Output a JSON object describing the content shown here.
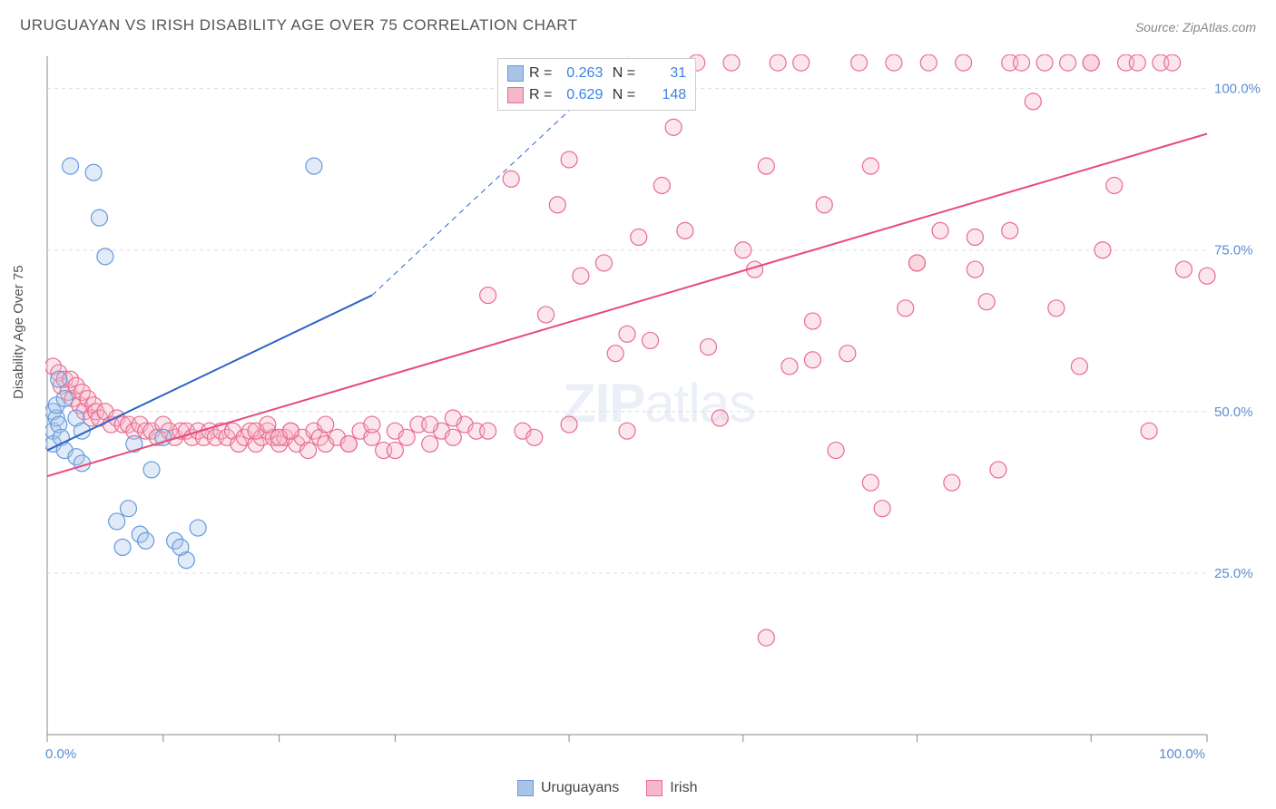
{
  "title": "URUGUAYAN VS IRISH DISABILITY AGE OVER 75 CORRELATION CHART",
  "source": "Source: ZipAtlas.com",
  "watermark": {
    "bold": "ZIP",
    "light": "atlas"
  },
  "y_axis_label": "Disability Age Over 75",
  "chart": {
    "type": "scatter",
    "background_color": "#ffffff",
    "plot_border_color": "#888888",
    "grid_color": "#dddddd",
    "grid_dash": "4,4",
    "xlim": [
      0,
      100
    ],
    "ylim": [
      0,
      105
    ],
    "x_ticks": [
      0,
      10,
      20,
      30,
      45,
      60,
      75,
      90,
      100
    ],
    "x_tick_labels": {
      "0": "0.0%",
      "100": "100.0%"
    },
    "y_ticks": [
      25,
      50,
      75,
      100
    ],
    "y_tick_labels": {
      "25": "25.0%",
      "50": "50.0%",
      "75": "75.0%",
      "100": "100.0%"
    },
    "tick_label_color": "#5b8dd6",
    "tick_label_fontsize": 15,
    "marker_radius": 9,
    "marker_stroke_width": 1.2,
    "marker_fill_opacity": 0.35,
    "series": [
      {
        "name": "Uruguayans",
        "color_stroke": "#6699dd",
        "color_fill": "#a8c5e8",
        "R": "0.263",
        "N": "31",
        "trend": {
          "x1": 0,
          "y1": 44,
          "x2": 28,
          "y2": 68,
          "dash_extend_x2": 50,
          "dash_extend_y2": 105,
          "color": "#2e64c8",
          "width": 2
        },
        "points": [
          [
            0.5,
            50
          ],
          [
            0.5,
            47
          ],
          [
            0.5,
            45
          ],
          [
            0.8,
            49
          ],
          [
            0.8,
            51
          ],
          [
            1,
            48
          ],
          [
            1,
            55
          ],
          [
            1.2,
            46
          ],
          [
            1.5,
            52
          ],
          [
            1.5,
            44
          ],
          [
            2,
            88
          ],
          [
            2.5,
            49
          ],
          [
            2.5,
            43
          ],
          [
            3,
            47
          ],
          [
            3,
            42
          ],
          [
            4,
            87
          ],
          [
            4.5,
            80
          ],
          [
            5,
            74
          ],
          [
            6,
            33
          ],
          [
            6.5,
            29
          ],
          [
            7,
            35
          ],
          [
            7.5,
            45
          ],
          [
            8,
            31
          ],
          [
            8.5,
            30
          ],
          [
            9,
            41
          ],
          [
            10,
            46
          ],
          [
            11,
            30
          ],
          [
            11.5,
            29
          ],
          [
            12,
            27
          ],
          [
            13,
            32
          ],
          [
            23,
            88
          ]
        ]
      },
      {
        "name": "Irish",
        "color_stroke": "#e86b8f",
        "color_fill": "#f5b8cb",
        "R": "0.629",
        "N": "148",
        "trend": {
          "x1": 0,
          "y1": 40,
          "x2": 100,
          "y2": 93,
          "color": "#e84a7a",
          "width": 2
        },
        "points": [
          [
            0.5,
            57
          ],
          [
            1,
            56
          ],
          [
            1.2,
            54
          ],
          [
            1.5,
            55
          ],
          [
            1.8,
            53
          ],
          [
            2,
            55
          ],
          [
            2.2,
            52
          ],
          [
            2.5,
            54
          ],
          [
            2.8,
            51
          ],
          [
            3,
            53
          ],
          [
            3.2,
            50
          ],
          [
            3.5,
            52
          ],
          [
            3.8,
            49
          ],
          [
            4,
            51
          ],
          [
            4.2,
            50
          ],
          [
            4.5,
            49
          ],
          [
            5,
            50
          ],
          [
            5.5,
            48
          ],
          [
            6,
            49
          ],
          [
            6.5,
            48
          ],
          [
            7,
            48
          ],
          [
            7.5,
            47
          ],
          [
            8,
            48
          ],
          [
            8.5,
            47
          ],
          [
            9,
            47
          ],
          [
            9.5,
            46
          ],
          [
            10,
            48
          ],
          [
            10.5,
            47
          ],
          [
            11,
            46
          ],
          [
            11.5,
            47
          ],
          [
            12,
            47
          ],
          [
            12.5,
            46
          ],
          [
            13,
            47
          ],
          [
            13.5,
            46
          ],
          [
            14,
            47
          ],
          [
            14.5,
            46
          ],
          [
            15,
            47
          ],
          [
            15.5,
            46
          ],
          [
            16,
            47
          ],
          [
            16.5,
            45
          ],
          [
            17,
            46
          ],
          [
            17.5,
            47
          ],
          [
            18,
            45
          ],
          [
            18.5,
            46
          ],
          [
            19,
            47
          ],
          [
            19.5,
            46
          ],
          [
            20,
            45
          ],
          [
            20.5,
            46
          ],
          [
            21,
            47
          ],
          [
            21.5,
            45
          ],
          [
            22,
            46
          ],
          [
            22.5,
            44
          ],
          [
            23,
            47
          ],
          [
            23.5,
            46
          ],
          [
            24,
            45
          ],
          [
            25,
            46
          ],
          [
            26,
            45
          ],
          [
            27,
            47
          ],
          [
            28,
            46
          ],
          [
            29,
            44
          ],
          [
            30,
            47
          ],
          [
            31,
            46
          ],
          [
            32,
            48
          ],
          [
            33,
            45
          ],
          [
            34,
            47
          ],
          [
            35,
            46
          ],
          [
            36,
            48
          ],
          [
            37,
            47
          ],
          [
            38,
            68
          ],
          [
            40,
            86
          ],
          [
            41,
            47
          ],
          [
            42,
            46
          ],
          [
            43,
            65
          ],
          [
            44,
            82
          ],
          [
            45,
            89
          ],
          [
            46,
            71
          ],
          [
            48,
            73
          ],
          [
            49,
            59
          ],
          [
            50,
            47
          ],
          [
            51,
            77
          ],
          [
            52,
            61
          ],
          [
            53,
            85
          ],
          [
            54,
            94
          ],
          [
            55,
            78
          ],
          [
            56,
            104
          ],
          [
            57,
            60
          ],
          [
            58,
            49
          ],
          [
            59,
            104
          ],
          [
            60,
            75
          ],
          [
            61,
            72
          ],
          [
            62,
            88
          ],
          [
            63,
            104
          ],
          [
            64,
            57
          ],
          [
            65,
            104
          ],
          [
            66,
            64
          ],
          [
            67,
            82
          ],
          [
            68,
            44
          ],
          [
            69,
            59
          ],
          [
            70,
            104
          ],
          [
            71,
            88
          ],
          [
            72,
            35
          ],
          [
            73,
            104
          ],
          [
            74,
            66
          ],
          [
            75,
            73
          ],
          [
            76,
            104
          ],
          [
            77,
            78
          ],
          [
            78,
            39
          ],
          [
            79,
            104
          ],
          [
            80,
            72
          ],
          [
            81,
            67
          ],
          [
            82,
            41
          ],
          [
            83,
            104
          ],
          [
            84,
            104
          ],
          [
            85,
            98
          ],
          [
            86,
            104
          ],
          [
            87,
            66
          ],
          [
            88,
            104
          ],
          [
            89,
            57
          ],
          [
            90,
            104
          ],
          [
            91,
            75
          ],
          [
            92,
            85
          ],
          [
            93,
            104
          ],
          [
            94,
            104
          ],
          [
            95,
            47
          ],
          [
            96,
            104
          ],
          [
            97,
            104
          ],
          [
            98,
            72
          ],
          [
            100,
            71
          ],
          [
            62,
            15
          ],
          [
            71,
            39
          ],
          [
            75,
            73
          ],
          [
            80,
            77
          ],
          [
            66,
            58
          ],
          [
            45,
            48
          ],
          [
            50,
            62
          ],
          [
            33,
            48
          ],
          [
            35,
            49
          ],
          [
            38,
            47
          ],
          [
            24,
            48
          ],
          [
            26,
            45
          ],
          [
            28,
            48
          ],
          [
            30,
            44
          ],
          [
            18,
            47
          ],
          [
            19,
            48
          ],
          [
            20,
            46
          ],
          [
            21,
            47
          ],
          [
            83,
            78
          ],
          [
            90,
            104
          ]
        ]
      }
    ]
  },
  "legend_bottom": [
    {
      "label": "Uruguayans",
      "stroke": "#6699dd",
      "fill": "#a8c5e8"
    },
    {
      "label": "Irish",
      "stroke": "#e86b8f",
      "fill": "#f5b8cb"
    }
  ]
}
